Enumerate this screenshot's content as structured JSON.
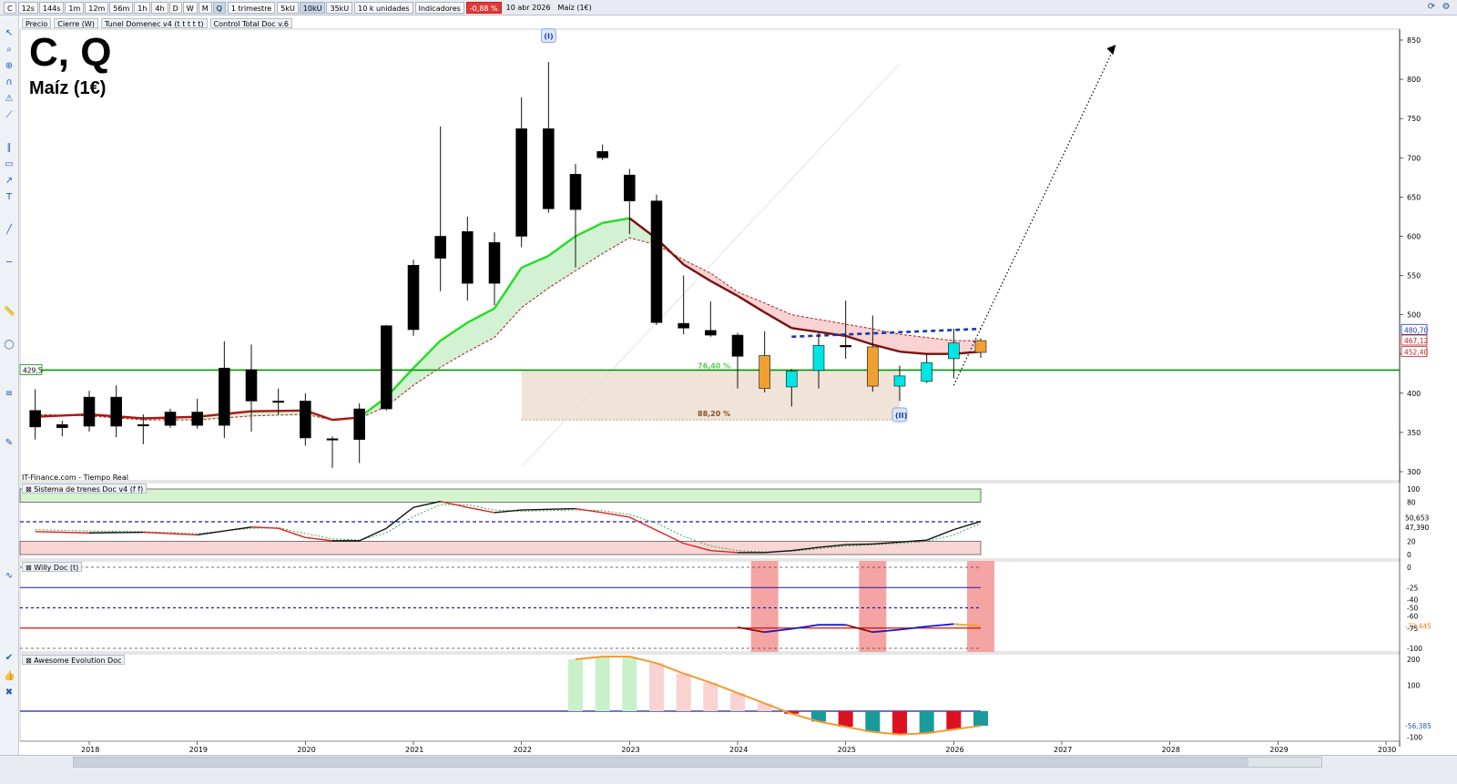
{
  "toolbar": {
    "symbol": "C",
    "timeframes": [
      "12s",
      "144s",
      "1m",
      "12m",
      "56m",
      "1h",
      "4h",
      "D",
      "W",
      "M",
      "Q"
    ],
    "selected_timeframe": "Q",
    "period": "1 trimestre",
    "units": [
      "5kU",
      "10kU",
      "35kU"
    ],
    "selected_unit": "10kU",
    "units_dropdown": "10 k unidades",
    "indicators": "Indicadores",
    "change": "-0,88 %",
    "date": "10 abr 2026",
    "instrument": "Maíz (1€)"
  },
  "legend": {
    "price": "Precio",
    "close": "Cierre (W)",
    "tunnel": "Tunel Domenec v4 (t t t t t)",
    "control": "Control Total Doc v.6"
  },
  "header": {
    "title": "C, Q",
    "subtitle": "Maíz (1€)"
  },
  "source": "IT-Finance.com - Tiempo Real",
  "panels": {
    "trend": "Sistema de trenes Doc v4 (f f)",
    "willy": "Willy Doc (t)",
    "awesome": "Awesome Evolution Doc"
  },
  "colors": {
    "bull_candle": "#00e5e5",
    "bear_candle": "#f0a030",
    "black_candle": "#000000",
    "tunnel_up": "#22dd22",
    "tunnel_down": "#7a1010",
    "support": "#009900",
    "resistance": "#1a3aaa"
  },
  "chart_data": [
    {
      "type": "candlestick",
      "title": "C, Q",
      "subtitle": "Maíz (1€)",
      "x_axis": [
        "2018",
        "2019",
        "2020",
        "2021",
        "2022",
        "2023",
        "2024",
        "2025",
        "2026",
        "2027",
        "2028",
        "2029",
        "2030"
      ],
      "ylim": [
        300,
        850
      ],
      "y_ticks": [
        300,
        350,
        400,
        450,
        500,
        550,
        600,
        650,
        700,
        750,
        800,
        850
      ],
      "price_labels": [
        {
          "label": "480,70",
          "value": 480.7,
          "color": "#1a3aaa"
        },
        {
          "label": "467,12",
          "value": 467.12,
          "color": "#c02020"
        },
        {
          "label": "452,40",
          "value": 452.4,
          "color": "#c02020"
        },
        {
          "label": "429,5",
          "value": 429.5,
          "color": "#009900"
        }
      ],
      "wave_labels": [
        {
          "label": "(I)",
          "x": 2022.25,
          "value": 855
        },
        {
          "label": "(II)",
          "x": 2025.5,
          "value": 372
        }
      ],
      "fib_labels": [
        {
          "label": "76,40 %",
          "value": 429.5
        },
        {
          "label": "88,20 %",
          "value": 366
        }
      ],
      "candles": [
        {
          "t": 2017.5,
          "o": 378,
          "h": 405,
          "l": 341,
          "c": 357,
          "col": "black"
        },
        {
          "t": 2017.75,
          "o": 356,
          "h": 365,
          "l": 345,
          "c": 360,
          "col": "black"
        },
        {
          "t": 2018.0,
          "o": 358,
          "h": 403,
          "l": 351,
          "c": 395,
          "col": "black"
        },
        {
          "t": 2018.25,
          "o": 395,
          "h": 410,
          "l": 344,
          "c": 358,
          "col": "black"
        },
        {
          "t": 2018.5,
          "o": 360,
          "h": 373,
          "l": 335,
          "c": 359,
          "col": "black"
        },
        {
          "t": 2018.75,
          "o": 359,
          "h": 380,
          "l": 356,
          "c": 376,
          "col": "black"
        },
        {
          "t": 2019.0,
          "o": 376,
          "h": 393,
          "l": 355,
          "c": 359,
          "col": "black"
        },
        {
          "t": 2019.25,
          "o": 359,
          "h": 466,
          "l": 343,
          "c": 432,
          "col": "black"
        },
        {
          "t": 2019.5,
          "o": 430,
          "h": 462,
          "l": 351,
          "c": 390,
          "col": "black"
        },
        {
          "t": 2019.75,
          "o": 390,
          "h": 406,
          "l": 373,
          "c": 389,
          "col": "black"
        },
        {
          "t": 2020.0,
          "o": 390,
          "h": 400,
          "l": 333,
          "c": 343,
          "col": "black"
        },
        {
          "t": 2020.25,
          "o": 342,
          "h": 345,
          "l": 305,
          "c": 341,
          "col": "black"
        },
        {
          "t": 2020.5,
          "o": 341,
          "h": 387,
          "l": 311,
          "c": 380,
          "col": "black"
        },
        {
          "t": 2020.75,
          "o": 380,
          "h": 487,
          "l": 378,
          "c": 486,
          "col": "black"
        },
        {
          "t": 2021.0,
          "o": 481,
          "h": 570,
          "l": 473,
          "c": 563,
          "col": "black"
        },
        {
          "t": 2021.25,
          "o": 572,
          "h": 740,
          "l": 530,
          "c": 600,
          "col": "black"
        },
        {
          "t": 2021.5,
          "o": 606,
          "h": 625,
          "l": 518,
          "c": 540,
          "col": "black"
        },
        {
          "t": 2021.75,
          "o": 540,
          "h": 605,
          "l": 512,
          "c": 592,
          "col": "black"
        },
        {
          "t": 2022.0,
          "o": 600,
          "h": 777,
          "l": 586,
          "c": 737,
          "col": "black"
        },
        {
          "t": 2022.25,
          "o": 737,
          "h": 822,
          "l": 630,
          "c": 635,
          "col": "black"
        },
        {
          "t": 2022.5,
          "o": 679,
          "h": 692,
          "l": 560,
          "c": 634,
          "col": "black"
        },
        {
          "t": 2022.75,
          "o": 708,
          "h": 717,
          "l": 697,
          "c": 700,
          "col": "black"
        },
        {
          "t": 2023.0,
          "o": 678,
          "h": 686,
          "l": 603,
          "c": 645,
          "col": "black"
        },
        {
          "t": 2023.25,
          "o": 645,
          "h": 653,
          "l": 487,
          "c": 490,
          "col": "black"
        },
        {
          "t": 2023.5,
          "o": 489,
          "h": 550,
          "l": 475,
          "c": 483,
          "col": "black"
        },
        {
          "t": 2023.75,
          "o": 480,
          "h": 517,
          "l": 472,
          "c": 474,
          "col": "black"
        },
        {
          "t": 2024.0,
          "o": 474,
          "h": 477,
          "l": 406,
          "c": 447,
          "col": "black"
        },
        {
          "t": 2024.25,
          "o": 448,
          "h": 479,
          "l": 401,
          "c": 406,
          "col": "orange"
        },
        {
          "t": 2024.5,
          "o": 408,
          "h": 431,
          "l": 383,
          "c": 428,
          "col": "cyan"
        },
        {
          "t": 2024.75,
          "o": 429,
          "h": 478,
          "l": 406,
          "c": 461,
          "col": "cyan"
        },
        {
          "t": 2025.0,
          "o": 461,
          "h": 518,
          "l": 444,
          "c": 459,
          "col": "black"
        },
        {
          "t": 2025.25,
          "o": 459,
          "h": 499,
          "l": 402,
          "c": 409,
          "col": "orange"
        },
        {
          "t": 2025.5,
          "o": 409,
          "h": 435,
          "l": 390,
          "c": 422,
          "col": "cyan"
        },
        {
          "t": 2025.75,
          "o": 415,
          "h": 451,
          "l": 413,
          "c": 439,
          "col": "cyan"
        },
        {
          "t": 2026.0,
          "o": 444,
          "h": 482,
          "l": 419,
          "c": 464,
          "col": "cyan"
        },
        {
          "t": 2026.25,
          "o": 467,
          "h": 470,
          "l": 445,
          "c": 452,
          "col": "orange"
        }
      ],
      "tunnel_upper": [
        [
          2017.5,
          370
        ],
        [
          2018.0,
          373
        ],
        [
          2018.5,
          368
        ],
        [
          2019.0,
          370
        ],
        [
          2019.5,
          377
        ],
        [
          2020.0,
          378
        ],
        [
          2020.25,
          366
        ],
        [
          2020.5,
          369
        ],
        [
          2020.75,
          395
        ],
        [
          2021.0,
          432
        ],
        [
          2021.25,
          467
        ],
        [
          2021.5,
          490
        ],
        [
          2021.75,
          508
        ],
        [
          2022.0,
          560
        ],
        [
          2022.25,
          575
        ],
        [
          2022.5,
          600
        ],
        [
          2022.75,
          617
        ],
        [
          2023.0,
          623
        ],
        [
          2023.25,
          597
        ],
        [
          2023.5,
          564
        ],
        [
          2023.75,
          543
        ],
        [
          2024.0,
          524
        ],
        [
          2024.25,
          503
        ],
        [
          2024.5,
          483
        ],
        [
          2024.75,
          478
        ],
        [
          2025.0,
          473
        ],
        [
          2025.25,
          462
        ],
        [
          2025.5,
          453
        ],
        [
          2025.75,
          450
        ],
        [
          2026.0,
          450
        ],
        [
          2026.25,
          453
        ]
      ],
      "tunnel_lower": [
        [
          2017.5,
          373
        ],
        [
          2018.0,
          371
        ],
        [
          2018.5,
          366
        ],
        [
          2019.0,
          366
        ],
        [
          2019.5,
          371
        ],
        [
          2020.0,
          373
        ],
        [
          2020.25,
          366
        ],
        [
          2020.5,
          368
        ],
        [
          2020.75,
          383
        ],
        [
          2021.0,
          410
        ],
        [
          2021.25,
          433
        ],
        [
          2021.5,
          453
        ],
        [
          2021.75,
          471
        ],
        [
          2022.0,
          509
        ],
        [
          2022.25,
          534
        ],
        [
          2022.5,
          556
        ],
        [
          2022.75,
          578
        ],
        [
          2023.0,
          598
        ],
        [
          2023.25,
          589
        ],
        [
          2023.5,
          570
        ],
        [
          2023.75,
          553
        ],
        [
          2024.0,
          529
        ],
        [
          2024.25,
          515
        ],
        [
          2024.5,
          500
        ],
        [
          2024.75,
          494
        ],
        [
          2025.0,
          488
        ],
        [
          2025.25,
          482
        ],
        [
          2025.5,
          475
        ],
        [
          2025.75,
          471
        ],
        [
          2026.0,
          467
        ],
        [
          2026.25,
          467
        ]
      ],
      "support": 429.5,
      "resistance": [
        [
          2024.5,
          472
        ],
        [
          2026.25,
          482
        ]
      ],
      "fib_zone": [
        [
          2022.0,
          429.5
        ],
        [
          2025.5,
          366
        ]
      ],
      "target_arrow": [
        [
          2026.0,
          410
        ],
        [
          2027.5,
          844
        ]
      ]
    },
    {
      "type": "line",
      "title": "Sistema de trenes Doc v4 (f f)",
      "ylim": [
        0,
        100
      ],
      "y_ticks": [
        0,
        20,
        80,
        100
      ],
      "value_labels": [
        {
          "label": "50,653",
          "value": 50.65
        },
        {
          "label": "47,390",
          "value": 47.39
        }
      ],
      "fast": [
        [
          2017.5,
          35
        ],
        [
          2018.0,
          33
        ],
        [
          2018.5,
          34
        ],
        [
          2019.0,
          30
        ],
        [
          2019.5,
          42
        ],
        [
          2019.75,
          40
        ],
        [
          2020.0,
          26
        ],
        [
          2020.25,
          21
        ],
        [
          2020.5,
          21
        ],
        [
          2020.75,
          40
        ],
        [
          2021.0,
          72
        ],
        [
          2021.25,
          81
        ],
        [
          2021.5,
          72
        ],
        [
          2021.75,
          64
        ],
        [
          2022.0,
          68
        ],
        [
          2022.5,
          70
        ],
        [
          2022.75,
          64
        ],
        [
          2023.0,
          57
        ],
        [
          2023.25,
          37
        ],
        [
          2023.5,
          17
        ],
        [
          2023.75,
          6
        ],
        [
          2024.0,
          3
        ],
        [
          2024.25,
          3
        ],
        [
          2024.5,
          6
        ],
        [
          2024.75,
          11
        ],
        [
          2025.0,
          15
        ],
        [
          2025.25,
          16
        ],
        [
          2025.5,
          19
        ],
        [
          2025.75,
          22
        ],
        [
          2026.0,
          38
        ],
        [
          2026.25,
          50.65
        ]
      ],
      "slow": [
        [
          2017.5,
          38
        ],
        [
          2018.0,
          36
        ],
        [
          2018.5,
          35
        ],
        [
          2019.0,
          32
        ],
        [
          2019.5,
          40
        ],
        [
          2019.75,
          41
        ],
        [
          2020.0,
          32
        ],
        [
          2020.25,
          24
        ],
        [
          2020.5,
          22
        ],
        [
          2020.75,
          33
        ],
        [
          2021.0,
          58
        ],
        [
          2021.25,
          76
        ],
        [
          2021.5,
          76
        ],
        [
          2021.75,
          68
        ],
        [
          2022.0,
          66
        ],
        [
          2022.5,
          68
        ],
        [
          2022.75,
          67
        ],
        [
          2023.0,
          61
        ],
        [
          2023.25,
          48
        ],
        [
          2023.5,
          28
        ],
        [
          2023.75,
          13
        ],
        [
          2024.0,
          6
        ],
        [
          2024.25,
          4
        ],
        [
          2024.5,
          5
        ],
        [
          2024.75,
          9
        ],
        [
          2025.0,
          13
        ],
        [
          2025.25,
          15
        ],
        [
          2025.5,
          17
        ],
        [
          2025.75,
          20
        ],
        [
          2026.0,
          30
        ],
        [
          2026.25,
          47.39
        ]
      ]
    },
    {
      "type": "line",
      "title": "Willy Doc (t)",
      "ylim": [
        -100,
        0
      ],
      "y_ticks": [
        0,
        -25,
        -40,
        -50,
        -60,
        -75,
        -100
      ],
      "value_labels": [
        {
          "label": "-72,445",
          "value": -72.45
        }
      ],
      "willy": [
        [
          2024.0,
          -74
        ],
        [
          2024.25,
          -80
        ],
        [
          2024.5,
          -76
        ],
        [
          2024.75,
          -71
        ],
        [
          2025.0,
          -71
        ],
        [
          2025.25,
          -80
        ],
        [
          2025.5,
          -77
        ],
        [
          2025.75,
          -73
        ],
        [
          2026.0,
          -70
        ],
        [
          2026.25,
          -72.45
        ]
      ],
      "alert_bars": [
        2024.25,
        2025.25,
        2026.25
      ]
    },
    {
      "type": "bar",
      "title": "Awesome Evolution Doc",
      "ylim": [
        -110,
        220
      ],
      "y_ticks": [
        -100,
        100,
        200
      ],
      "value_labels": [
        {
          "label": "-56,385",
          "value": -56.385
        }
      ],
      "bars": [
        [
          2022.5,
          200
        ],
        [
          2022.75,
          210
        ],
        [
          2023.0,
          210
        ],
        [
          2023.25,
          185
        ],
        [
          2023.5,
          145
        ],
        [
          2023.75,
          110
        ],
        [
          2024.0,
          70
        ],
        [
          2024.25,
          30
        ],
        [
          2024.5,
          -10
        ],
        [
          2024.75,
          -40
        ],
        [
          2025.0,
          -60
        ],
        [
          2025.25,
          -80
        ],
        [
          2025.5,
          -90
        ],
        [
          2025.75,
          -85
        ],
        [
          2026.0,
          -70
        ],
        [
          2026.25,
          -56.385
        ]
      ]
    }
  ]
}
